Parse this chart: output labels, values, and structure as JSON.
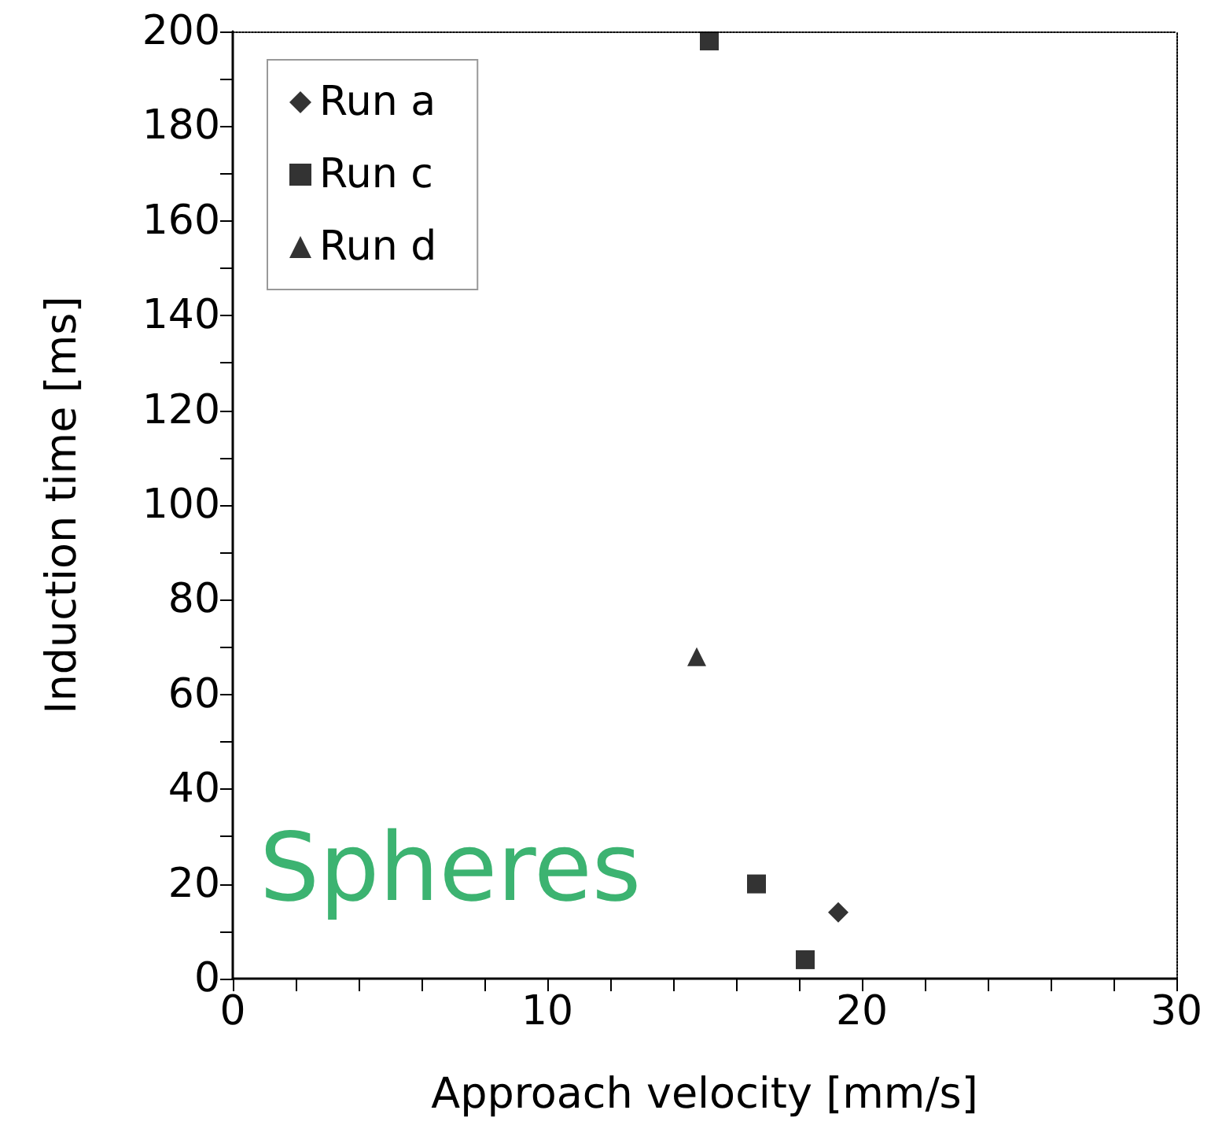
{
  "chart_data": {
    "type": "scatter",
    "xlabel": "Approach velocity [mm/s]",
    "ylabel": "Induction time [ms]",
    "annotations": [
      "Spheres"
    ],
    "xlim": [
      0,
      30
    ],
    "xticks": [
      0,
      {
        "value": 2,
        "label": null
      },
      {
        "value": 4,
        "label": null
      },
      {
        "value": 6,
        "label": null
      },
      {
        "value": 8,
        "label": null
      },
      10,
      {
        "value": 12,
        "label": null
      },
      {
        "value": 14,
        "label": null
      },
      {
        "value": 16,
        "label": null
      },
      {
        "value": 18,
        "label": null
      },
      20,
      {
        "value": 22,
        "label": null
      },
      {
        "value": 24,
        "label": null
      },
      {
        "value": 26,
        "label": null
      },
      {
        "value": 28,
        "label": null
      },
      30
    ],
    "ylim": [
      0,
      200
    ],
    "yticks": [
      0,
      {
        "value": 10,
        "label": null
      },
      20,
      {
        "value": 30,
        "label": null
      },
      40,
      {
        "value": 50,
        "label": null
      },
      60,
      {
        "value": 70,
        "label": null
      },
      80,
      {
        "value": 90,
        "label": null
      },
      100,
      {
        "value": 110,
        "label": null
      },
      120,
      {
        "value": 130,
        "label": null
      },
      140,
      {
        "value": 150,
        "label": null
      },
      160,
      {
        "value": 170,
        "label": null
      },
      180,
      {
        "value": 190,
        "label": null
      },
      200
    ],
    "grid": false,
    "legend": "top left",
    "series": [
      {
        "name": "Run a",
        "color": "#000000",
        "marker": "diamond",
        "x": [
          19.25
        ],
        "values": [
          14
        ]
      },
      {
        "name": "Run c",
        "color": "#000000",
        "marker": "square",
        "x": [
          15.15,
          16.65,
          18.2
        ],
        "values": [
          198,
          20,
          4
        ]
      },
      {
        "name": "Run d",
        "color": "#000000",
        "marker": "triangle",
        "x": [
          14.75
        ],
        "values": [
          68
        ]
      }
    ]
  }
}
